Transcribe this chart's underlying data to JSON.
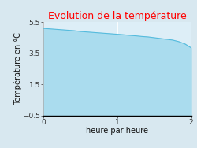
{
  "title": "Evolution de la température",
  "title_color": "#ff0000",
  "xlabel": "heure par heure",
  "ylabel": "Température en °C",
  "x_values": [
    0,
    0.083,
    0.167,
    0.25,
    0.333,
    0.417,
    0.5,
    0.583,
    0.667,
    0.75,
    0.833,
    0.917,
    1.0,
    1.083,
    1.167,
    1.25,
    1.333,
    1.417,
    1.5,
    1.583,
    1.667,
    1.75,
    1.833,
    1.917,
    2.0
  ],
  "y_values": [
    5.1,
    5.07,
    5.04,
    5.01,
    4.98,
    4.95,
    4.9,
    4.87,
    4.84,
    4.81,
    4.78,
    4.75,
    4.72,
    4.69,
    4.65,
    4.62,
    4.58,
    4.55,
    4.5,
    4.45,
    4.4,
    4.35,
    4.25,
    4.1,
    3.85
  ],
  "fill_color": "#aadcee",
  "line_color": "#55bbdd",
  "fill_baseline": -0.5,
  "xlim": [
    0,
    2
  ],
  "ylim": [
    -0.5,
    5.5
  ],
  "yticks": [
    -0.5,
    1.5,
    3.5,
    5.5
  ],
  "xticks": [
    0,
    1,
    2
  ],
  "bg_color": "#d8e8f0",
  "plot_bg_color": "#ddeef7",
  "title_fontsize": 9,
  "axis_label_fontsize": 7,
  "tick_fontsize": 6.5,
  "figsize": [
    2.5,
    1.88
  ],
  "dpi": 100
}
